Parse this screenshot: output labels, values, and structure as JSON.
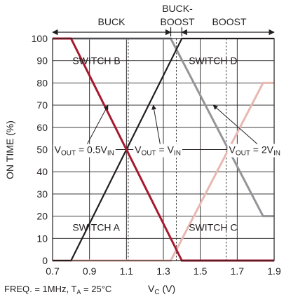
{
  "chart_data": {
    "type": "line",
    "xlabel_main": "V",
    "xlabel_sub": "C",
    "xlabel_unit": " (V)",
    "ylabel": "ON TIME (%)",
    "xlim": [
      0.7,
      1.9
    ],
    "ylim": [
      0,
      100
    ],
    "x_ticks": [
      "0.7",
      "0.9",
      "1.1",
      "1.3",
      "1.5",
      "1.7",
      "1.9"
    ],
    "y_ticks": [
      "0",
      "10",
      "20",
      "30",
      "40",
      "50",
      "60",
      "70",
      "80",
      "90",
      "100"
    ],
    "grid": true,
    "dashed_markers_x": [
      1.11,
      1.37,
      1.64
    ],
    "regions": [
      {
        "label": "BUCK",
        "x_start": 0.7,
        "x_end": 1.34
      },
      {
        "label_line1": "BUCK-",
        "label_line2": "BOOST",
        "x_start": 1.34,
        "x_end": 1.4
      },
      {
        "label": "BOOST",
        "x_start": 1.4,
        "x_end": 1.9
      }
    ],
    "series": [
      {
        "name": "SWITCH A",
        "color": "#a6192e",
        "width": 3,
        "x": [
          0.7,
          0.8,
          1.1,
          1.4,
          1.9
        ],
        "y": [
          100,
          100,
          50,
          0,
          0
        ]
      },
      {
        "name": "SWITCH B",
        "color": "#231f20",
        "width": 2.2,
        "x": [
          0.7,
          0.8,
          1.1,
          1.4,
          1.9
        ],
        "y": [
          0,
          0,
          50,
          100,
          100
        ]
      },
      {
        "name": "SWITCH C",
        "color": "#e8b8b2",
        "width": 3,
        "x": [
          0.7,
          1.34,
          1.84,
          1.9
        ],
        "y": [
          0,
          0,
          80,
          80
        ]
      },
      {
        "name": "SWITCH D",
        "color": "#939598",
        "width": 3,
        "x": [
          0.7,
          1.34,
          1.84,
          1.9
        ],
        "y": [
          100,
          100,
          20,
          20
        ]
      }
    ],
    "series_labels": [
      {
        "text": "SWITCH B",
        "x": 0.8,
        "y": 90
      },
      {
        "text": "SWITCH A",
        "x": 0.8,
        "y": 15
      },
      {
        "text": "SWITCH D",
        "x": 1.43,
        "y": 90
      },
      {
        "text": "SWITCH C",
        "x": 1.43,
        "y": 15
      }
    ],
    "annotations": [
      {
        "main": "V",
        "sub": "OUT",
        "rest": " = 0.5V",
        "sub2": "IN",
        "x": 0.71,
        "y": 50,
        "arrow_to_x": 1.0,
        "arrow_to_y": 70
      },
      {
        "main": "V",
        "sub": "OUT",
        "rest": " = V",
        "sub2": "IN",
        "x": 1.145,
        "y": 50,
        "arrow_to_x": 1.245,
        "arrow_to_y": 70
      },
      {
        "main": "V",
        "sub": "OUT",
        "rest": " = 2V",
        "sub2": "IN",
        "x": 1.655,
        "y": 50,
        "arrow_to_x": 1.57,
        "arrow_to_y": 70
      }
    ],
    "footnote": {
      "prefix": "FREQ. = 1MHz, T",
      "sub": "A",
      "suffix": " = 25°C"
    }
  }
}
